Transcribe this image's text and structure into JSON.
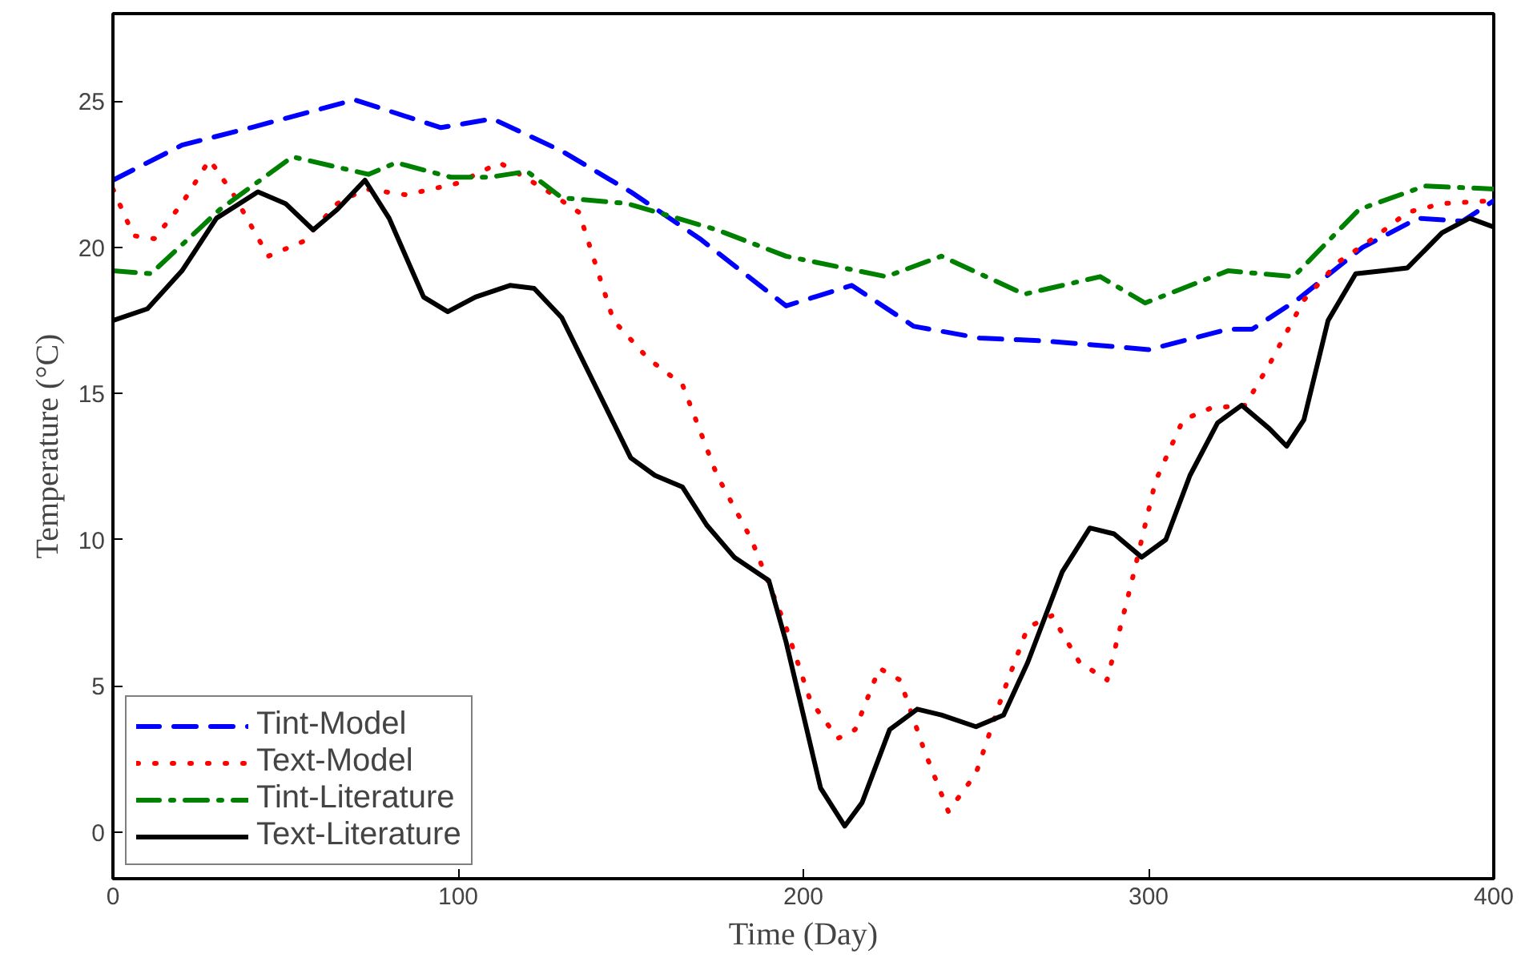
{
  "chart_data": {
    "type": "line",
    "xlabel": "Time (Day)",
    "ylabel": "Temperature (°C)",
    "xlim": [
      0,
      400
    ],
    "ylim": [
      -1.6,
      28
    ],
    "xticks": [
      0,
      100,
      200,
      300,
      400
    ],
    "yticks": [
      0,
      5,
      10,
      15,
      20,
      25
    ],
    "grid": false,
    "legend": "bottom left",
    "marker": "none",
    "series": [
      {
        "name": "Tint-Model",
        "color": "#0000ff",
        "line_style": "dashed",
        "x": [
          0,
          20,
          40,
          70,
          95,
          110,
          130,
          150,
          170,
          195,
          214,
          232,
          251,
          270,
          291,
          300,
          323,
          330,
          343,
          362,
          378,
          391,
          400
        ],
        "values": [
          22.3,
          23.5,
          24.1,
          25.05,
          24.1,
          24.4,
          23.3,
          21.9,
          20.3,
          18.0,
          18.7,
          17.3,
          16.9,
          16.8,
          16.6,
          16.5,
          17.2,
          17.2,
          18.2,
          20.0,
          21.0,
          20.9,
          21.6
        ]
      },
      {
        "name": "Text-Model",
        "color": "#ff0000",
        "line_style": "dotted",
        "x": [
          0,
          6,
          12,
          20,
          28,
          35,
          45,
          55,
          65,
          73,
          85,
          100,
          112,
          125,
          135,
          145,
          155,
          165,
          175,
          185,
          195,
          202,
          210,
          215,
          222,
          228,
          235,
          242,
          250,
          258,
          265,
          272,
          280,
          288,
          295,
          302,
          310,
          318,
          328,
          335,
          345,
          355,
          365,
          375,
          385,
          400
        ],
        "values": [
          22,
          20.4,
          20.3,
          21.5,
          23.0,
          21.8,
          19.7,
          20.2,
          21.5,
          22.0,
          21.8,
          22.2,
          22.9,
          22.0,
          21.2,
          17.5,
          16.2,
          15.3,
          12.2,
          10.0,
          7.0,
          4.5,
          3.2,
          3.5,
          5.6,
          5.2,
          2.8,
          0.7,
          2.0,
          4.8,
          7.0,
          7.4,
          5.8,
          5.2,
          8.5,
          12.0,
          14.1,
          14.5,
          14.6,
          16.0,
          18.2,
          19.5,
          20.3,
          21.2,
          21.5,
          21.6
        ]
      },
      {
        "name": "Tint-Literature",
        "color": "#008000",
        "line_style": "dashdot",
        "x": [
          0,
          11,
          31,
          52,
          74,
          82,
          98,
          109,
          120,
          130,
          149,
          175,
          195,
          224,
          240,
          264,
          286,
          299,
          323,
          342,
          361,
          380,
          400
        ],
        "values": [
          19.2,
          19.1,
          21.3,
          23.1,
          22.5,
          22.9,
          22.4,
          22.4,
          22.6,
          21.7,
          21.5,
          20.6,
          19.7,
          19.0,
          19.7,
          18.4,
          19.0,
          18.1,
          19.2,
          19.0,
          21.3,
          22.1,
          22.0
        ]
      },
      {
        "name": "Text-Literature",
        "color": "#000000",
        "line_style": "solid",
        "x": [
          0,
          10,
          20,
          30,
          42,
          50,
          58,
          65,
          73,
          80,
          90,
          97,
          105,
          115,
          122,
          130,
          140,
          150,
          157,
          165,
          172,
          180,
          190,
          195,
          200,
          205,
          212,
          217,
          225,
          233,
          240,
          250,
          258,
          265,
          275,
          283,
          290,
          298,
          305,
          312,
          320,
          327,
          335,
          340,
          345,
          352,
          360,
          368,
          375,
          385,
          393,
          400
        ],
        "values": [
          17.5,
          17.9,
          19.2,
          21.0,
          21.9,
          21.5,
          20.6,
          21.3,
          22.3,
          21.0,
          18.3,
          17.8,
          18.3,
          18.7,
          18.6,
          17.6,
          15.2,
          12.8,
          12.2,
          11.8,
          10.5,
          9.4,
          8.6,
          6.5,
          4.0,
          1.5,
          0.2,
          1.0,
          3.5,
          4.2,
          4.0,
          3.6,
          4.0,
          5.8,
          8.9,
          10.4,
          10.2,
          9.4,
          10.0,
          12.2,
          14.0,
          14.6,
          13.8,
          13.2,
          14.1,
          17.5,
          19.1,
          19.2,
          19.3,
          20.5,
          21.0,
          20.7
        ]
      }
    ]
  }
}
